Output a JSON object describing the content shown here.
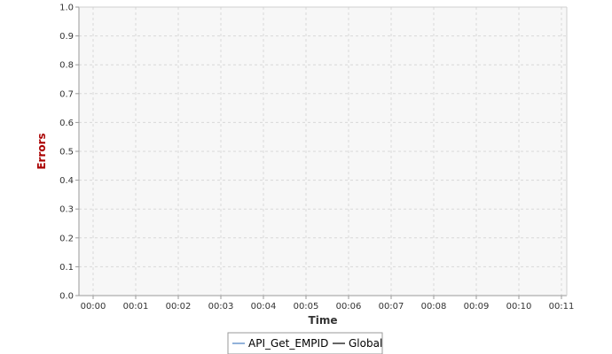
{
  "chart_data": {
    "type": "line",
    "xlabel": "Time",
    "ylabel": "Errors",
    "x_ticks": [
      "00:00",
      "00:01",
      "00:02",
      "00:03",
      "00:04",
      "00:05",
      "00:06",
      "00:07",
      "00:08",
      "00:09",
      "00:10",
      "00:11"
    ],
    "xlim": [
      "00:00",
      "00:11"
    ],
    "ylim": [
      0,
      1.0
    ],
    "y_ticks": [
      "0.0",
      "0.1",
      "0.2",
      "0.3",
      "0.4",
      "0.5",
      "0.6",
      "0.7",
      "0.8",
      "0.9",
      "1.0"
    ],
    "grid": true,
    "legend_position": "bottom",
    "series": [
      {
        "name": "API_Get_EMPID",
        "color": "#4a7fc1",
        "values": []
      },
      {
        "name": "Global",
        "color": "#000000",
        "values": []
      }
    ],
    "colors": {
      "plot_background": "#f7f7f7",
      "gridline": "#d8d8d8",
      "axis": "#9a9a9a",
      "ylabel": "#aa0000",
      "xlabel": "#333333"
    }
  }
}
